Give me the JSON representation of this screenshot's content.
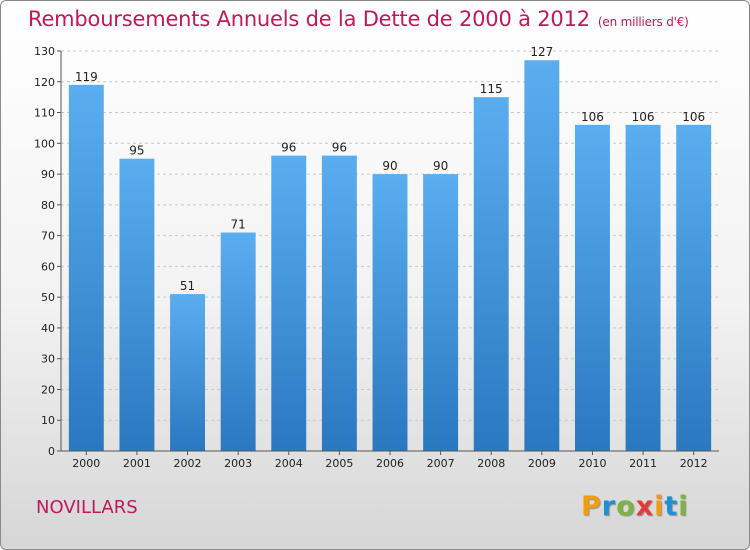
{
  "chart_data": {
    "type": "bar",
    "title": "Remboursements Annuels de la Dette de 2000 à 2012",
    "unit_note": "(en milliers d'€)",
    "categories": [
      "2000",
      "2001",
      "2002",
      "2003",
      "2004",
      "2005",
      "2006",
      "2007",
      "2008",
      "2009",
      "2010",
      "2011",
      "2012"
    ],
    "values": [
      119,
      95,
      51,
      71,
      96,
      96,
      90,
      90,
      115,
      127,
      106,
      106,
      106
    ],
    "ylim": [
      0,
      130
    ],
    "yticks": [
      0,
      10,
      20,
      30,
      40,
      50,
      60,
      70,
      80,
      90,
      100,
      110,
      120,
      130
    ],
    "grid": true,
    "bar_color": "#3a8fd6"
  },
  "place_name": "NOVILLARS",
  "logo": {
    "letters": [
      "P",
      "r",
      "o",
      "x",
      "i",
      "t",
      "i"
    ],
    "colors": [
      "#f39c12",
      "#1e8fd6",
      "#7cb342",
      "#e53935",
      "#f39c12",
      "#1e8fd6",
      "#7cb342"
    ]
  }
}
